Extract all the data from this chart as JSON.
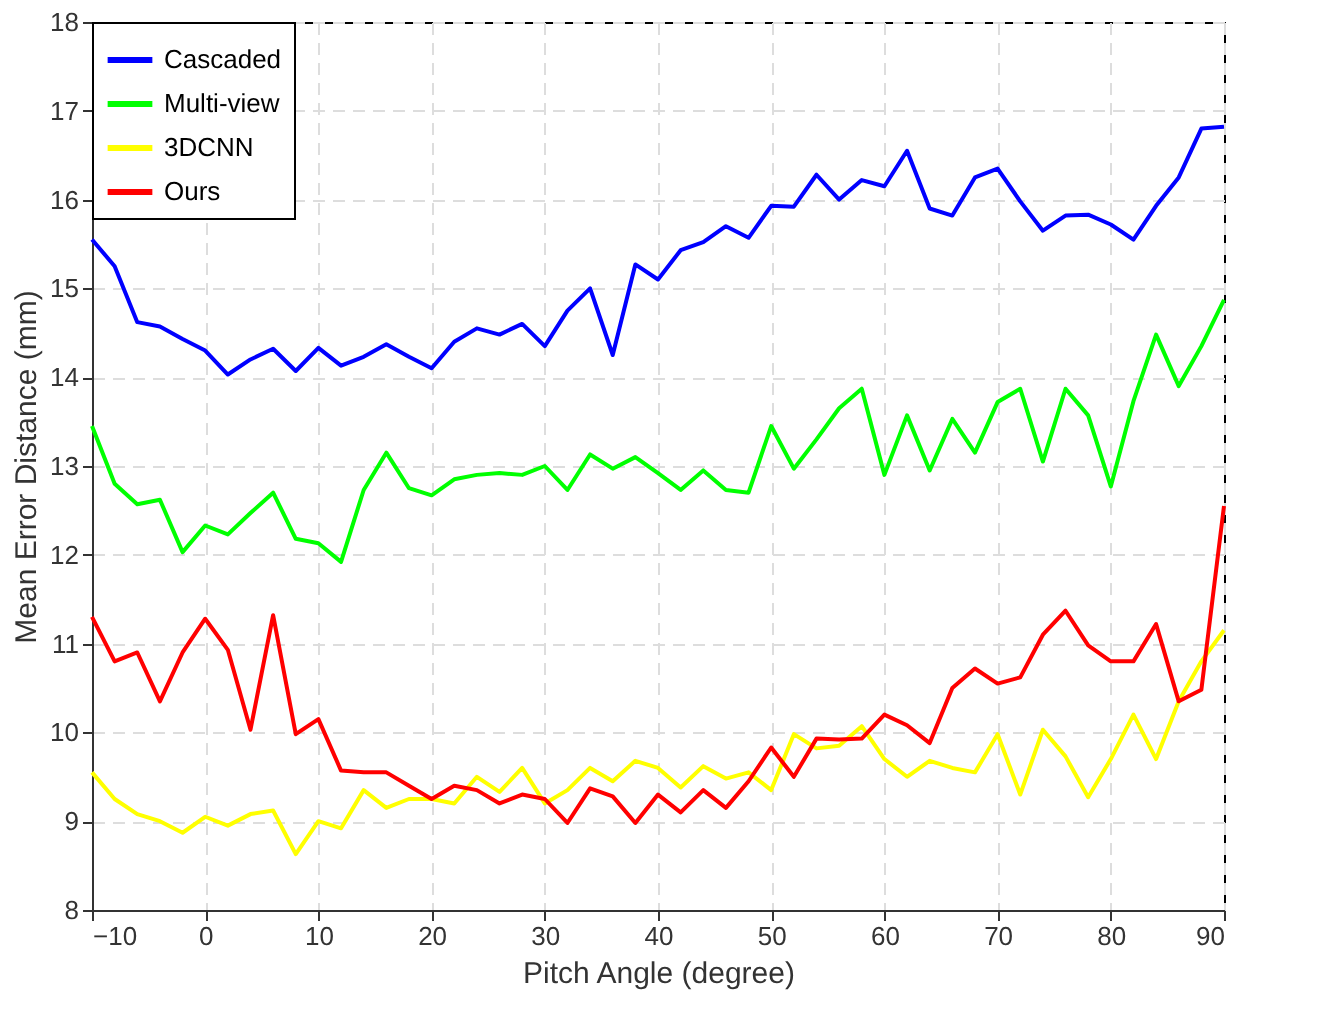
{
  "chart_data": {
    "type": "line",
    "xlabel": "Pitch Angle (degree)",
    "ylabel": "Mean Error Distance (mm)",
    "x": [
      -10,
      -8,
      -6,
      -4,
      -2,
      0,
      2,
      4,
      6,
      8,
      10,
      12,
      14,
      16,
      18,
      20,
      22,
      24,
      26,
      28,
      30,
      32,
      34,
      36,
      38,
      40,
      42,
      44,
      46,
      48,
      50,
      52,
      54,
      56,
      58,
      60,
      62,
      64,
      66,
      68,
      70,
      72,
      74,
      76,
      78,
      80,
      82,
      84,
      86,
      88,
      90
    ],
    "series": [
      {
        "name": "Cascaded",
        "color": "#0000ff",
        "values": [
          15.55,
          15.25,
          14.62,
          14.57,
          14.43,
          14.3,
          14.03,
          14.2,
          14.32,
          14.07,
          14.33,
          14.13,
          14.23,
          14.37,
          14.23,
          14.1,
          14.4,
          14.55,
          14.48,
          14.6,
          14.35,
          14.75,
          15.0,
          14.25,
          15.27,
          15.1,
          15.43,
          15.52,
          15.7,
          15.57,
          15.93,
          15.92,
          16.28,
          16.0,
          16.22,
          16.15,
          16.55,
          15.9,
          15.82,
          16.25,
          16.35,
          15.98,
          15.65,
          15.82,
          15.83,
          15.72,
          15.55,
          15.93,
          16.25,
          16.8,
          16.82
        ]
      },
      {
        "name": "Multi-view",
        "color": "#00ff00",
        "values": [
          13.45,
          12.8,
          12.57,
          12.62,
          12.03,
          12.33,
          12.23,
          12.47,
          12.7,
          12.18,
          12.13,
          11.92,
          12.73,
          13.15,
          12.75,
          12.67,
          12.85,
          12.9,
          12.92,
          12.9,
          13.0,
          12.73,
          13.13,
          12.97,
          13.1,
          12.92,
          12.73,
          12.95,
          12.73,
          12.7,
          13.45,
          12.97,
          13.3,
          13.65,
          13.87,
          12.9,
          13.57,
          12.95,
          13.53,
          13.15,
          13.72,
          13.87,
          13.05,
          13.87,
          13.57,
          12.77,
          13.73,
          14.48,
          13.9,
          14.35,
          14.87
        ]
      },
      {
        "name": "3DCNN",
        "color": "#ffff00",
        "values": [
          9.55,
          9.25,
          9.08,
          9.0,
          8.87,
          9.05,
          8.95,
          9.08,
          9.12,
          8.63,
          9.0,
          8.92,
          9.35,
          9.15,
          9.25,
          9.25,
          9.2,
          9.5,
          9.33,
          9.6,
          9.2,
          9.35,
          9.6,
          9.45,
          9.68,
          9.6,
          9.38,
          9.62,
          9.48,
          9.55,
          9.35,
          9.98,
          9.82,
          9.85,
          10.07,
          9.7,
          9.5,
          9.68,
          9.6,
          9.55,
          9.98,
          9.3,
          10.03,
          9.73,
          9.27,
          9.7,
          10.2,
          9.7,
          10.35,
          10.8,
          11.15
        ]
      },
      {
        "name": "Ours",
        "color": "#ff0000",
        "values": [
          11.3,
          10.8,
          10.9,
          10.35,
          10.9,
          11.28,
          10.93,
          10.03,
          11.32,
          9.98,
          10.15,
          9.57,
          9.55,
          9.55,
          9.4,
          9.25,
          9.4,
          9.35,
          9.2,
          9.3,
          9.25,
          8.98,
          9.37,
          9.28,
          8.98,
          9.3,
          9.1,
          9.35,
          9.15,
          9.45,
          9.83,
          9.5,
          9.93,
          9.92,
          9.93,
          10.2,
          10.08,
          9.88,
          10.5,
          10.72,
          10.55,
          10.62,
          11.1,
          11.37,
          10.98,
          10.8,
          10.8,
          11.22,
          10.35,
          10.48,
          12.55
        ]
      }
    ],
    "xlim": [
      -10,
      90
    ],
    "xticks": [
      -10,
      0,
      10,
      20,
      30,
      40,
      50,
      60,
      70,
      80,
      90
    ],
    "ylim": [
      8,
      18
    ],
    "yticks": [
      8,
      9,
      10,
      11,
      12,
      13,
      14,
      15,
      16,
      17,
      18
    ],
    "grid": true,
    "legend": "top left",
    "line_style": "solid",
    "marker": "none"
  }
}
